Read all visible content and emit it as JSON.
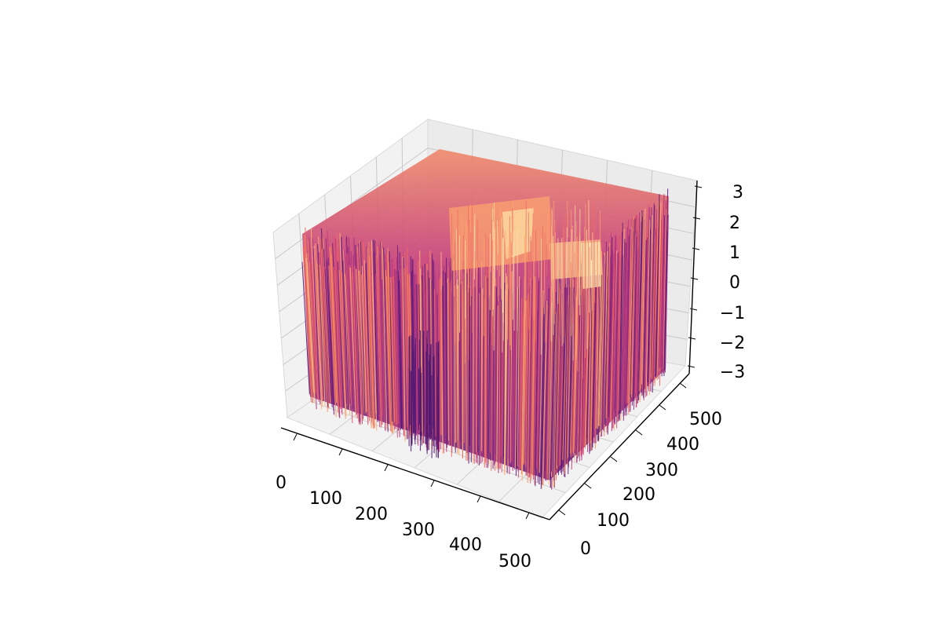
{
  "chart_data": {
    "type": "surface",
    "colormap": "magma",
    "title": "",
    "xlabel": "",
    "ylabel": "",
    "zlabel": "",
    "x_ticks": [
      "0",
      "100",
      "200",
      "300",
      "400",
      "500"
    ],
    "y_ticks": [
      "0",
      "100",
      "200",
      "300",
      "400",
      "500"
    ],
    "z_ticks": [
      "−3",
      "−2",
      "−1",
      "0",
      "1",
      "2",
      "3"
    ],
    "xlim": [
      0,
      500
    ],
    "ylim": [
      0,
      500
    ],
    "zlim": [
      -3,
      3
    ],
    "grid": true,
    "surface": {
      "noise_range": [
        -3,
        3
      ],
      "plateaus": [
        {
          "x_range": [
            300,
            500
          ],
          "y_range": [
            300,
            500
          ],
          "level": 1.0
        },
        {
          "x_range": [
            300,
            500
          ],
          "y_range": [
            0,
            200
          ],
          "level": 0.5
        }
      ]
    }
  },
  "colors": {
    "pane": "#f2f2f2",
    "grid": "#b0b0b0",
    "axis": "#000000",
    "surface_low": "#6b1f7c",
    "surface_mid": "#d0407a",
    "surface_high": "#fec287"
  }
}
